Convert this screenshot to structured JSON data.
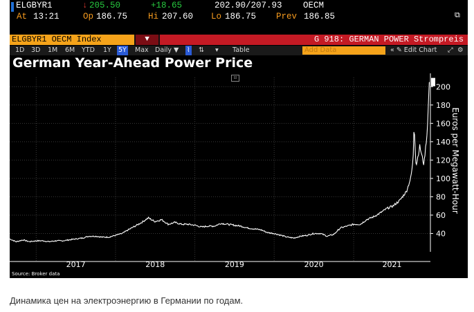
{
  "quote": {
    "ticker": "ELGBYR1",
    "price_arrow": "↓",
    "price": "205.50",
    "change": "+18.65",
    "range": "202.90/207.93",
    "source": "OECM",
    "time_label": "At",
    "time": "13:21",
    "open_label": "Op",
    "open": "186.75",
    "high_label": "Hi",
    "high": "207.60",
    "low_label": "Lo",
    "low": "186.75",
    "prev_label": "Prev",
    "prev": "186.85"
  },
  "security_bar": {
    "security": "ELGBYR1 OECM Index",
    "menu_glyph": "▼",
    "description": "G 918: GERMAN POWER Strompreis"
  },
  "toolbar": {
    "periods": [
      "1D",
      "3D",
      "1M",
      "6M",
      "YTD",
      "1Y",
      "5Y",
      "Max"
    ],
    "selected_period": "5Y",
    "frequency": "Daily ▼",
    "table_label": "Table",
    "add_data_placeholder": "Add Data",
    "edit_chart_label": "« ✎ Edit Chart"
  },
  "colors": {
    "background": "#000000",
    "line": "#ffffff",
    "grid": "#3a3a3a",
    "accent_orange": "#f5a31a",
    "accent_red": "#c41a24",
    "up_green": "#27c93f",
    "down_red": "#e23a2e"
  },
  "chart_data": {
    "type": "line",
    "title": "German Year-Ahead Power Price",
    "ylabel": "Euros per Megawatt-Hour",
    "xlabel": "",
    "ylim": [
      20,
      210
    ],
    "yticks": [
      40,
      60,
      80,
      100,
      120,
      140,
      160,
      180,
      200
    ],
    "xticks": [
      "2017",
      "2018",
      "2019",
      "2020",
      "2021"
    ],
    "grid": true,
    "source_note": "Source: Broker data",
    "series": [
      {
        "x": [
          "2016-09",
          "2016-10",
          "2016-11",
          "2016-12",
          "2017-01",
          "2017-02",
          "2017-03",
          "2017-04",
          "2017-05",
          "2017-06",
          "2017-07",
          "2017-08",
          "2017-09",
          "2017-10",
          "2017-11",
          "2017-12",
          "2018-01",
          "2018-02",
          "2018-03",
          "2018-04",
          "2018-05",
          "2018-06",
          "2018-07",
          "2018-08",
          "2018-09",
          "2018-10",
          "2018-11",
          "2018-12",
          "2019-01",
          "2019-02",
          "2019-03",
          "2019-04",
          "2019-05",
          "2019-06",
          "2019-07",
          "2019-08",
          "2019-09",
          "2019-10",
          "2019-11",
          "2019-12",
          "2020-01",
          "2020-02",
          "2020-03",
          "2020-04",
          "2020-05",
          "2020-06",
          "2020-07",
          "2020-08",
          "2020-09",
          "2020-10",
          "2020-11",
          "2020-12",
          "2021-01",
          "2021-02",
          "2021-03",
          "2021-04",
          "2021-05",
          "2021-06",
          "2021-07",
          "2021-08",
          "2021-09",
          "2021-09-20",
          "2021-10-01",
          "2021-10-06",
          "2021-10-15",
          "2021-11-01",
          "2021-11-20",
          "2021-12-05",
          "2021-12-15"
        ],
        "y": [
          34,
          31,
          33,
          31,
          32,
          32,
          31,
          32,
          32,
          33,
          34,
          35,
          37,
          37,
          36,
          36,
          38,
          40,
          44,
          48,
          52,
          57,
          53,
          55,
          50,
          52,
          50,
          50,
          49,
          47,
          48,
          48,
          51,
          50,
          49,
          48,
          46,
          45,
          44,
          41,
          40,
          38,
          36,
          35,
          37,
          38,
          40,
          40,
          37,
          39,
          46,
          48,
          50,
          50,
          55,
          58,
          62,
          67,
          70,
          76,
          86,
          100,
          118,
          160,
          113,
          135,
          115,
          150,
          205
        ]
      }
    ]
  }
}
